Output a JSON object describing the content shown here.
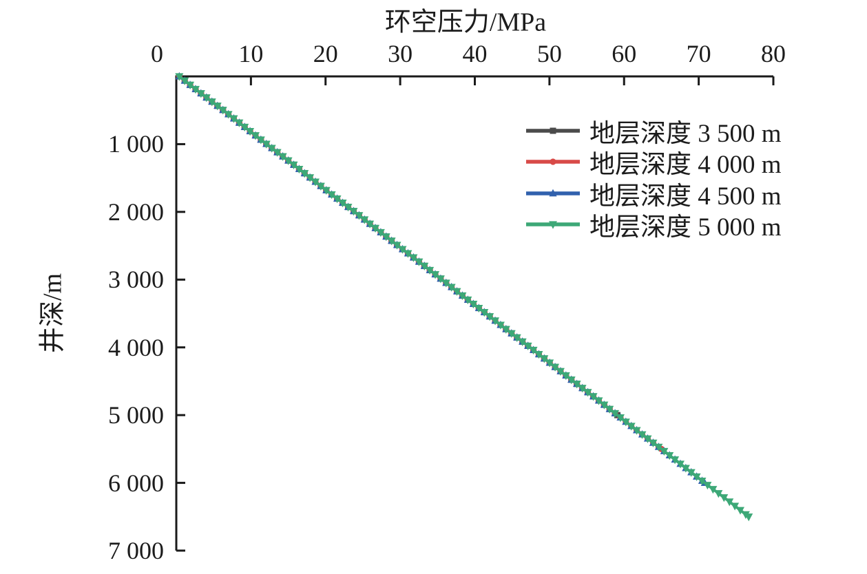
{
  "chart_data": {
    "type": "line",
    "title": "",
    "xlabel": "环空压力/MPa",
    "ylabel": "井深/m",
    "grid": false,
    "legend_position": "upper right",
    "axis_color": "#1a1a1a",
    "x_axis": {
      "position": "top",
      "min": 0,
      "max": 80,
      "ticks": [
        0,
        10,
        20,
        30,
        40,
        50,
        60,
        70,
        80
      ],
      "tick_labels": [
        "0",
        "10",
        "20",
        "30",
        "40",
        "50",
        "60",
        "70",
        "80"
      ]
    },
    "y_axis": {
      "position": "left",
      "inverted": true,
      "min": 0,
      "max": 7000,
      "ticks": [
        1000,
        2000,
        3000,
        4000,
        5000,
        6000,
        7000
      ],
      "tick_labels": [
        "1 000",
        "2 000",
        "3 000",
        "4 000",
        "5 000",
        "6 000",
        "7 000"
      ]
    },
    "series": [
      {
        "name": "地层深度 3 500 m",
        "formation_depth_m": 3500,
        "color": "#4b4b4b",
        "marker": "square",
        "max_well_depth_m": 5000,
        "points": [
          [
            0.4,
            0
          ],
          [
            3.3,
            250
          ],
          [
            6.3,
            500
          ],
          [
            9.2,
            750
          ],
          [
            12.1,
            1000
          ],
          [
            15.1,
            1250
          ],
          [
            18.0,
            1500
          ],
          [
            20.9,
            1750
          ],
          [
            23.9,
            2000
          ],
          [
            26.8,
            2250
          ],
          [
            29.7,
            2500
          ],
          [
            32.7,
            2750
          ],
          [
            35.6,
            3000
          ],
          [
            38.5,
            3250
          ],
          [
            41.5,
            3500
          ],
          [
            44.4,
            3750
          ],
          [
            47.4,
            4000
          ],
          [
            50.3,
            4250
          ],
          [
            53.2,
            4500
          ],
          [
            56.2,
            4750
          ],
          [
            59.1,
            5000
          ]
        ]
      },
      {
        "name": "地层深度 4 000 m",
        "formation_depth_m": 4000,
        "color": "#d84a48",
        "marker": "circle",
        "max_well_depth_m": 5500,
        "points": [
          [
            0.4,
            0
          ],
          [
            3.3,
            250
          ],
          [
            6.3,
            500
          ],
          [
            9.2,
            750
          ],
          [
            12.1,
            1000
          ],
          [
            15.1,
            1250
          ],
          [
            18.0,
            1500
          ],
          [
            20.9,
            1750
          ],
          [
            23.9,
            2000
          ],
          [
            26.8,
            2250
          ],
          [
            29.7,
            2500
          ],
          [
            32.7,
            2750
          ],
          [
            35.6,
            3000
          ],
          [
            38.5,
            3250
          ],
          [
            41.5,
            3500
          ],
          [
            44.4,
            3750
          ],
          [
            47.4,
            4000
          ],
          [
            50.3,
            4250
          ],
          [
            53.2,
            4500
          ],
          [
            56.2,
            4750
          ],
          [
            59.1,
            5000
          ],
          [
            62.0,
            5250
          ],
          [
            65.0,
            5500
          ]
        ]
      },
      {
        "name": "地层深度 4 500 m",
        "formation_depth_m": 4500,
        "color": "#3161ad",
        "marker": "triangle-up",
        "max_well_depth_m": 6000,
        "points": [
          [
            0.4,
            0
          ],
          [
            3.3,
            250
          ],
          [
            6.3,
            500
          ],
          [
            9.2,
            750
          ],
          [
            12.1,
            1000
          ],
          [
            15.1,
            1250
          ],
          [
            18.0,
            1500
          ],
          [
            20.9,
            1750
          ],
          [
            23.9,
            2000
          ],
          [
            26.8,
            2250
          ],
          [
            29.7,
            2500
          ],
          [
            32.7,
            2750
          ],
          [
            35.6,
            3000
          ],
          [
            38.5,
            3250
          ],
          [
            41.5,
            3500
          ],
          [
            44.4,
            3750
          ],
          [
            47.4,
            4000
          ],
          [
            50.3,
            4250
          ],
          [
            53.2,
            4500
          ],
          [
            56.2,
            4750
          ],
          [
            59.1,
            5000
          ],
          [
            62.0,
            5250
          ],
          [
            65.0,
            5500
          ],
          [
            67.9,
            5750
          ],
          [
            70.8,
            6000
          ]
        ]
      },
      {
        "name": "地层深度 5 000 m",
        "formation_depth_m": 5000,
        "color": "#3da877",
        "marker": "triangle-down",
        "max_well_depth_m": 6500,
        "points": [
          [
            0.4,
            0
          ],
          [
            3.3,
            250
          ],
          [
            6.3,
            500
          ],
          [
            9.2,
            750
          ],
          [
            12.1,
            1000
          ],
          [
            15.1,
            1250
          ],
          [
            18.0,
            1500
          ],
          [
            20.9,
            1750
          ],
          [
            23.9,
            2000
          ],
          [
            26.8,
            2250
          ],
          [
            29.7,
            2500
          ],
          [
            32.7,
            2750
          ],
          [
            35.6,
            3000
          ],
          [
            38.5,
            3250
          ],
          [
            41.5,
            3500
          ],
          [
            44.4,
            3750
          ],
          [
            47.4,
            4000
          ],
          [
            50.3,
            4250
          ],
          [
            53.2,
            4500
          ],
          [
            56.2,
            4750
          ],
          [
            59.1,
            5000
          ],
          [
            62.0,
            5250
          ],
          [
            65.0,
            5500
          ],
          [
            67.9,
            5750
          ],
          [
            70.8,
            6000
          ],
          [
            73.8,
            6250
          ],
          [
            76.7,
            6500
          ]
        ]
      }
    ]
  }
}
